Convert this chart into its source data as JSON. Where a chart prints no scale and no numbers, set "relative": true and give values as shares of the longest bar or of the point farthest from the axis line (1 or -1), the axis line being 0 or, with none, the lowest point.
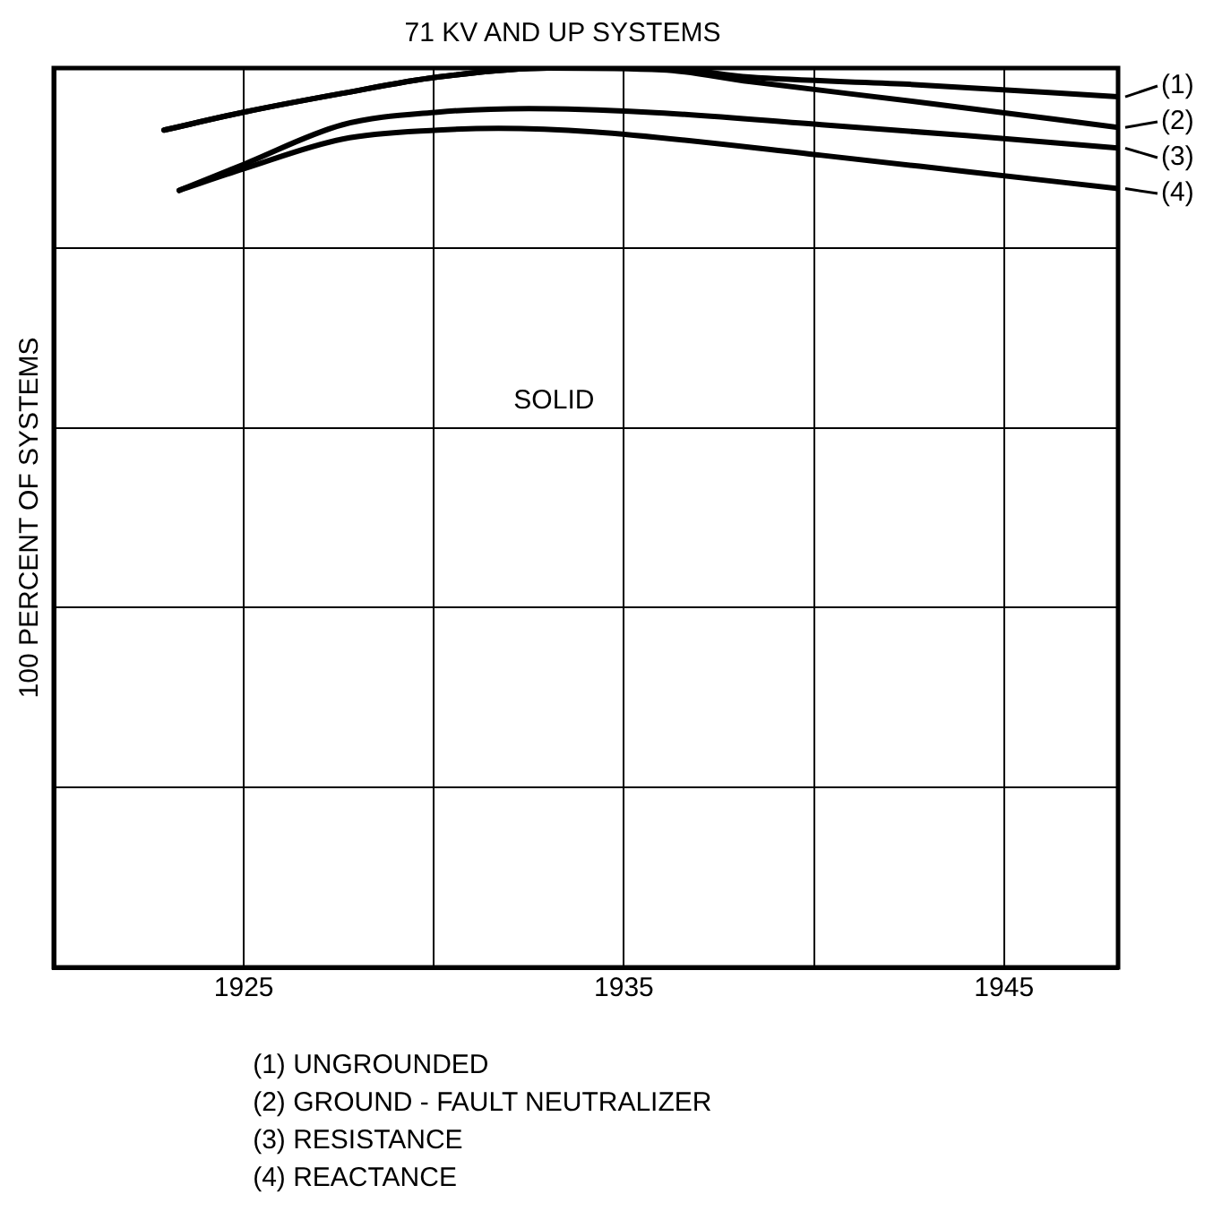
{
  "chart_data": {
    "type": "line",
    "title": "71 KV AND UP SYSTEMS",
    "ylabel": "100 PERCENT OF SYSTEMS",
    "relative": true,
    "xlim": [
      1920,
      1948
    ],
    "xticks": [
      1925,
      {
        "value": 1930,
        "label": null
      },
      1935,
      {
        "value": 1940,
        "label": null
      },
      1945
    ],
    "grid": true,
    "legend": "right",
    "marker": "none",
    "line_style": "solid",
    "series": [
      {
        "name": "(1)",
        "color": "#000000",
        "x": [
          1922.9,
          1925,
          1927.6,
          1930.1,
          1933,
          1936,
          1938.3,
          1942.5,
          1948
        ],
        "values": [
          0.931,
          0.951,
          0.972,
          0.99,
          1,
          1,
          0.99,
          0.982,
          0.968
        ]
      },
      {
        "name": "(2)",
        "color": "#000000",
        "x": [
          1922.9,
          1925,
          1927.6,
          1930.1,
          1933,
          1936,
          1938.3,
          1943,
          1948
        ],
        "values": [
          0.931,
          0.951,
          0.972,
          0.99,
          1,
          0.998,
          0.985,
          0.961,
          0.934
        ]
      },
      {
        "name": "(3)",
        "color": "#000000",
        "x": [
          1923.3,
          1925,
          1927.6,
          1930.1,
          1932.5,
          1935.6,
          1940.2,
          1944,
          1948
        ],
        "values": [
          0.864,
          0.893,
          0.937,
          0.951,
          0.955,
          0.951,
          0.937,
          0.925,
          0.911
        ]
      },
      {
        "name": "(4)",
        "color": "#000000",
        "x": [
          1923.3,
          1925,
          1927.6,
          1930.1,
          1931.7,
          1934.2,
          1940.2,
          1944,
          1948
        ],
        "values": [
          0.864,
          0.888,
          0.921,
          0.931,
          0.933,
          0.929,
          0.903,
          0.885,
          0.866
        ]
      }
    ],
    "annotations": [
      "SOLID",
      "(1) UNGROUNDED",
      "(2) GROUND - FAULT NEUTRALIZER",
      "(3) RESISTANCE",
      "(4) REACTANCE"
    ]
  }
}
